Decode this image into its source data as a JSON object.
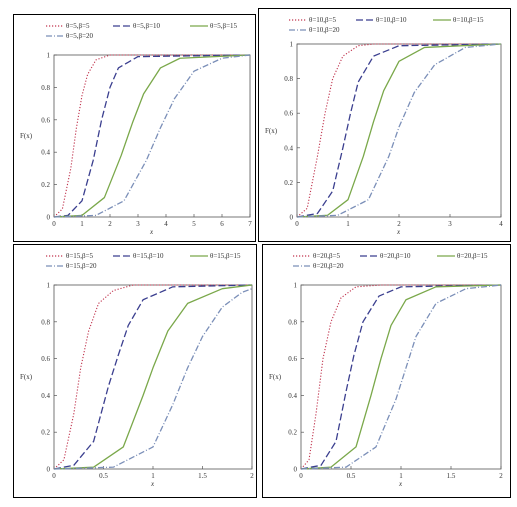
{
  "chart_data": [
    {
      "type": "line",
      "title": "",
      "xlabel": "x",
      "ylabel": "F(x)",
      "xlim": [
        0,
        7
      ],
      "ylim": [
        0,
        1
      ],
      "xticks": [
        "0",
        "1",
        "2",
        "3",
        "4",
        "5",
        "6",
        "7"
      ],
      "yticks": [
        "0",
        "0.2",
        "0.4",
        "0.6",
        "0.8",
        "1"
      ],
      "legend": "top",
      "series": [
        {
          "name": "θ=5,β=5",
          "color": "#c0334d",
          "style": "dotted",
          "x": [
            0,
            0.3,
            0.6,
            0.8,
            1.0,
            1.2,
            1.5,
            2.0,
            7
          ],
          "y": [
            0,
            0.05,
            0.3,
            0.55,
            0.75,
            0.88,
            0.97,
            1.0,
            1.0
          ]
        },
        {
          "name": "θ=5,β=10",
          "color": "#3b3f8f",
          "style": "dashed",
          "x": [
            0,
            0.5,
            1.0,
            1.4,
            1.7,
            2.0,
            2.3,
            3.0,
            7
          ],
          "y": [
            0,
            0.01,
            0.1,
            0.35,
            0.6,
            0.8,
            0.92,
            0.99,
            1.0
          ]
        },
        {
          "name": "θ=5,β=15",
          "color": "#7aa84a",
          "style": "solid",
          "x": [
            0,
            1.0,
            1.8,
            2.4,
            2.8,
            3.2,
            3.8,
            4.5,
            7
          ],
          "y": [
            0,
            0.01,
            0.12,
            0.38,
            0.58,
            0.76,
            0.92,
            0.98,
            1.0
          ]
        },
        {
          "name": "θ=5,β=20",
          "color": "#7b8fb8",
          "style": "dashdot",
          "x": [
            0,
            1.5,
            2.5,
            3.3,
            3.8,
            4.3,
            5.0,
            6.0,
            7
          ],
          "y": [
            0,
            0.01,
            0.1,
            0.35,
            0.55,
            0.73,
            0.9,
            0.98,
            1.0
          ]
        }
      ]
    },
    {
      "type": "line",
      "title": "",
      "xlabel": "x",
      "ylabel": "F(x)",
      "xlim": [
        0,
        4
      ],
      "ylim": [
        0,
        1
      ],
      "xticks": [
        "0",
        "1",
        "2",
        "3",
        "4"
      ],
      "yticks": [
        "0",
        "0.2",
        "0.4",
        "0.6",
        "0.8",
        "1"
      ],
      "legend": "top",
      "series": [
        {
          "name": "θ=10,β=5",
          "color": "#c0334d",
          "style": "dotted",
          "x": [
            0,
            0.2,
            0.4,
            0.55,
            0.7,
            0.9,
            1.2,
            1.5,
            4
          ],
          "y": [
            0,
            0.05,
            0.35,
            0.6,
            0.8,
            0.93,
            0.99,
            1.0,
            1.0
          ]
        },
        {
          "name": "θ=10,β=10",
          "color": "#3b3f8f",
          "style": "dashed",
          "x": [
            0,
            0.4,
            0.7,
            0.9,
            1.05,
            1.2,
            1.5,
            2.0,
            4
          ],
          "y": [
            0,
            0.02,
            0.15,
            0.4,
            0.6,
            0.78,
            0.93,
            0.99,
            1.0
          ]
        },
        {
          "name": "θ=10,β=15",
          "color": "#7aa84a",
          "style": "solid",
          "x": [
            0,
            0.6,
            1.0,
            1.3,
            1.5,
            1.7,
            2.0,
            2.5,
            4
          ],
          "y": [
            0,
            0.01,
            0.1,
            0.35,
            0.55,
            0.73,
            0.9,
            0.98,
            1.0
          ]
        },
        {
          "name": "θ=10,β=20",
          "color": "#7b8fb8",
          "style": "dashdot",
          "x": [
            0,
            0.8,
            1.4,
            1.8,
            2.0,
            2.3,
            2.7,
            3.3,
            4
          ],
          "y": [
            0,
            0.01,
            0.1,
            0.35,
            0.52,
            0.72,
            0.88,
            0.98,
            1.0
          ]
        }
      ]
    },
    {
      "type": "line",
      "title": "",
      "xlabel": "x",
      "ylabel": "F(x)",
      "xlim": [
        0,
        2
      ],
      "ylim": [
        0,
        1
      ],
      "xticks": [
        "0",
        "0.5",
        "1",
        "1.5",
        "2"
      ],
      "yticks": [
        "0",
        "0.2",
        "0.4",
        "0.6",
        "0.8",
        "1"
      ],
      "legend": "top",
      "series": [
        {
          "name": "θ=15,β=5",
          "color": "#c0334d",
          "style": "dotted",
          "x": [
            0,
            0.1,
            0.2,
            0.27,
            0.35,
            0.45,
            0.6,
            0.8,
            2
          ],
          "y": [
            0,
            0.05,
            0.3,
            0.55,
            0.75,
            0.9,
            0.97,
            1.0,
            1.0
          ]
        },
        {
          "name": "θ=15,β=10",
          "color": "#3b3f8f",
          "style": "dashed",
          "x": [
            0,
            0.2,
            0.4,
            0.55,
            0.65,
            0.75,
            0.9,
            1.2,
            2
          ],
          "y": [
            0,
            0.02,
            0.15,
            0.45,
            0.62,
            0.78,
            0.92,
            0.99,
            1.0
          ]
        },
        {
          "name": "θ=15,β=15",
          "color": "#7aa84a",
          "style": "solid",
          "x": [
            0,
            0.4,
            0.7,
            0.9,
            1.0,
            1.15,
            1.35,
            1.7,
            2
          ],
          "y": [
            0,
            0.01,
            0.12,
            0.4,
            0.55,
            0.75,
            0.9,
            0.98,
            1.0
          ]
        },
        {
          "name": "θ=15,β=20",
          "color": "#7b8fb8",
          "style": "dashdot",
          "x": [
            0,
            0.6,
            1.0,
            1.2,
            1.35,
            1.5,
            1.7,
            1.9,
            2
          ],
          "y": [
            0,
            0.01,
            0.12,
            0.35,
            0.55,
            0.72,
            0.88,
            0.96,
            0.98
          ]
        }
      ]
    },
    {
      "type": "line",
      "title": "",
      "xlabel": "x",
      "ylabel": "F(x)",
      "xlim": [
        0,
        2
      ],
      "ylim": [
        0,
        1
      ],
      "xticks": [
        "0",
        "0.5",
        "1",
        "1.5",
        "2"
      ],
      "yticks": [
        "0",
        "0.2",
        "0.4",
        "0.6",
        "0.8",
        "1"
      ],
      "legend": "top",
      "series": [
        {
          "name": "θ=20,β=5",
          "color": "#c0334d",
          "style": "dotted",
          "x": [
            0,
            0.08,
            0.15,
            0.22,
            0.3,
            0.4,
            0.55,
            0.8,
            2
          ],
          "y": [
            0,
            0.05,
            0.3,
            0.6,
            0.8,
            0.93,
            0.99,
            1.0,
            1.0
          ]
        },
        {
          "name": "θ=20,β=10",
          "color": "#3b3f8f",
          "style": "dashed",
          "x": [
            0,
            0.2,
            0.35,
            0.45,
            0.53,
            0.62,
            0.78,
            1.0,
            2
          ],
          "y": [
            0,
            0.02,
            0.15,
            0.42,
            0.62,
            0.8,
            0.94,
            0.99,
            1.0
          ]
        },
        {
          "name": "θ=20,β=15",
          "color": "#7aa84a",
          "style": "solid",
          "x": [
            0,
            0.3,
            0.55,
            0.7,
            0.8,
            0.9,
            1.05,
            1.35,
            2
          ],
          "y": [
            0,
            0.01,
            0.12,
            0.4,
            0.6,
            0.78,
            0.92,
            0.99,
            1.0
          ]
        },
        {
          "name": "θ=20,β=20",
          "color": "#7b8fb8",
          "style": "dashdot",
          "x": [
            0,
            0.45,
            0.75,
            0.95,
            1.05,
            1.15,
            1.35,
            1.65,
            2
          ],
          "y": [
            0,
            0.01,
            0.12,
            0.38,
            0.55,
            0.72,
            0.9,
            0.98,
            1.0
          ]
        }
      ]
    }
  ]
}
